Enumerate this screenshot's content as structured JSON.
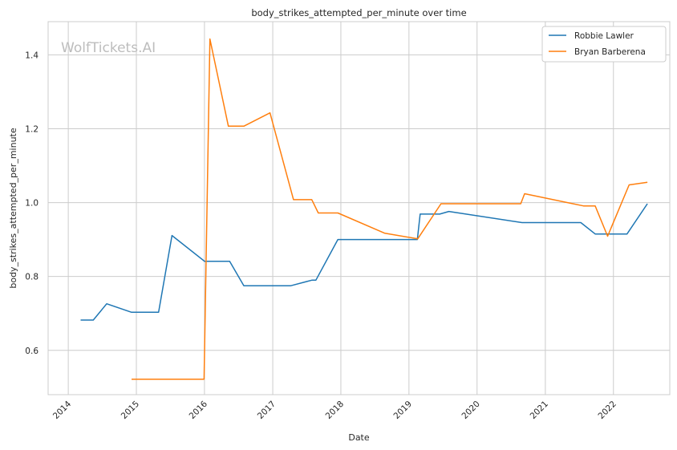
{
  "chart_data": {
    "type": "line",
    "title": "body_strikes_attempted_per_minute over time",
    "xlabel": "Date",
    "ylabel": "body_strikes_attempted_per_minute",
    "watermark": "WolfTickets.AI",
    "xlim": [
      "2013-09-15",
      "2022-10-30"
    ],
    "ylim": [
      0.48,
      1.49
    ],
    "x_ticks": [
      "2014",
      "2015",
      "2016",
      "2017",
      "2018",
      "2019",
      "2020",
      "2021",
      "2022"
    ],
    "y_ticks": [
      0.6,
      0.8,
      1.0,
      1.2,
      1.4
    ],
    "y_tick_labels": [
      "0.6",
      "0.8",
      "1.0",
      "1.2",
      "1.4"
    ],
    "grid": true,
    "legend_position": "top-right",
    "series": [
      {
        "name": "Robbie Lawler",
        "color": "#1f77b4",
        "points": [
          [
            "2014-03-08",
            0.682
          ],
          [
            "2014-05-15",
            0.682
          ],
          [
            "2014-07-26",
            0.726
          ],
          [
            "2014-12-06",
            0.703
          ],
          [
            "2015-04-30",
            0.703
          ],
          [
            "2015-07-11",
            0.911
          ],
          [
            "2016-01-02",
            0.841
          ],
          [
            "2016-05-15",
            0.841
          ],
          [
            "2016-07-30",
            0.775
          ],
          [
            "2017-04-08",
            0.775
          ],
          [
            "2017-07-29",
            0.79
          ],
          [
            "2017-08-20",
            0.79
          ],
          [
            "2017-12-16",
            0.9
          ],
          [
            "2019-02-15",
            0.9
          ],
          [
            "2019-03-02",
            0.969
          ],
          [
            "2019-06-15",
            0.969
          ],
          [
            "2019-08-03",
            0.976
          ],
          [
            "2020-08-29",
            0.946
          ],
          [
            "2021-07-10",
            0.946
          ],
          [
            "2021-09-25",
            0.915
          ],
          [
            "2022-03-15",
            0.915
          ],
          [
            "2022-07-02",
            0.997
          ]
        ]
      },
      {
        "name": "Bryan Barberena",
        "color": "#ff7f0e",
        "points": [
          [
            "2014-12-06",
            0.522
          ],
          [
            "2015-12-30",
            0.522
          ],
          [
            "2016-01-30",
            1.443
          ],
          [
            "2016-05-08",
            1.207
          ],
          [
            "2016-07-30",
            1.207
          ],
          [
            "2016-12-17",
            1.243
          ],
          [
            "2017-04-22",
            1.008
          ],
          [
            "2017-07-29",
            1.008
          ],
          [
            "2017-09-02",
            0.972
          ],
          [
            "2017-12-16",
            0.972
          ],
          [
            "2018-08-25",
            0.917
          ],
          [
            "2019-02-17",
            0.902
          ],
          [
            "2019-06-22",
            0.997
          ],
          [
            "2020-08-22",
            0.997
          ],
          [
            "2020-09-12",
            1.024
          ],
          [
            "2021-07-24",
            0.991
          ],
          [
            "2021-09-25",
            0.991
          ],
          [
            "2021-12-01",
            0.909
          ],
          [
            "2022-03-26",
            1.048
          ],
          [
            "2022-07-02",
            1.055
          ]
        ]
      }
    ]
  }
}
